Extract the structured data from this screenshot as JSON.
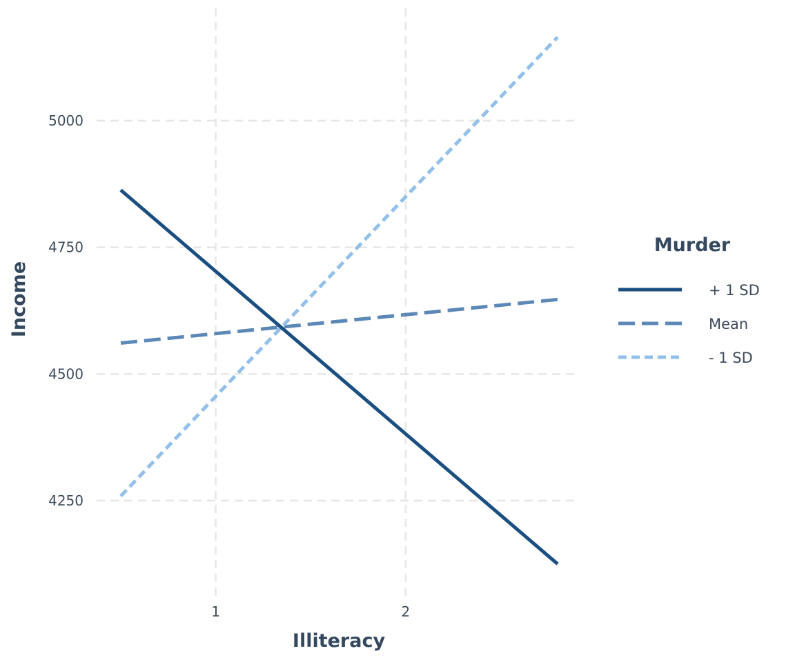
{
  "chart_data": {
    "type": "line",
    "title": "",
    "xlabel": "Illiteracy",
    "ylabel": "Income",
    "xlim": [
      0.5,
      2.8
    ],
    "ylim": [
      4125,
      5165
    ],
    "x_ticks": [
      1,
      2
    ],
    "y_ticks": [
      4250,
      4500,
      4750,
      5000
    ],
    "grid": true,
    "legend": {
      "title": "Murder",
      "position": "right"
    },
    "series": [
      {
        "name": "+ 1 SD",
        "x": [
          0.5,
          2.8
        ],
        "y": [
          4863,
          4125
        ],
        "color": "#1a4e80",
        "linestyle": "solid"
      },
      {
        "name": "Mean",
        "x": [
          0.5,
          2.8
        ],
        "y": [
          4561,
          4647
        ],
        "color": "#5b88b6",
        "linestyle": "dashed"
      },
      {
        "name": "- 1 SD",
        "x": [
          0.5,
          2.8
        ],
        "y": [
          4259,
          5165
        ],
        "color": "#92c0e9",
        "linestyle": "dotted"
      }
    ]
  }
}
